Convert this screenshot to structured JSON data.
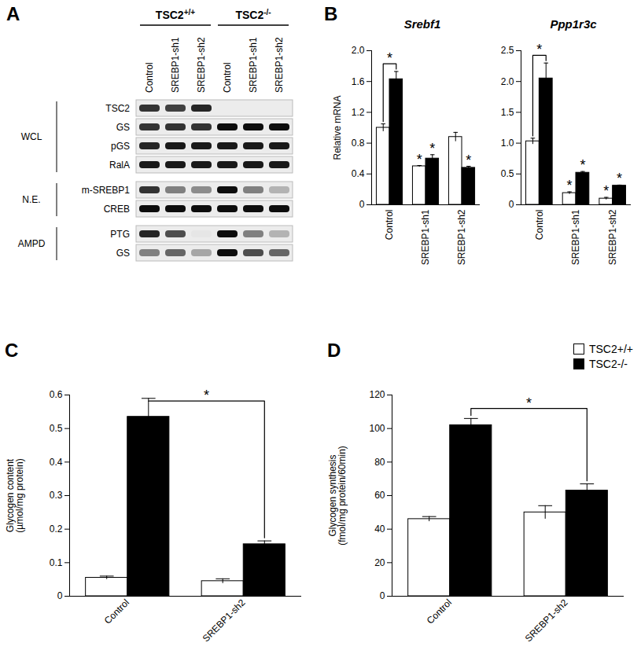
{
  "blot": {
    "panel": "A",
    "groups": [
      {
        "label": "TSC2+/+",
        "lanes": [
          "Control",
          "SREBP1-sh1",
          "SREBP1-sh2"
        ]
      },
      {
        "label": "TSC2-/-",
        "lanes": [
          "Control",
          "SREBP1-sh1",
          "SREBP1-sh2"
        ]
      }
    ],
    "sections": [
      {
        "label": "WCL",
        "rows": [
          {
            "label": "TSC2",
            "bands": [
              0.8,
              0.75,
              0.85,
              0,
              0,
              0
            ]
          },
          {
            "label": "GS",
            "bands": [
              0.8,
              0.8,
              0.8,
              0.95,
              0.95,
              0.95
            ]
          },
          {
            "label": "pGS",
            "bands": [
              0.85,
              0.9,
              0.9,
              0.9,
              0.9,
              0.9
            ]
          },
          {
            "label": "RalA",
            "bands": [
              0.9,
              0.9,
              0.9,
              0.9,
              0.9,
              0.9
            ]
          }
        ]
      },
      {
        "label": "N.E.",
        "rows": [
          {
            "label": "m-SREBP1",
            "bands": [
              0.8,
              0.5,
              0.45,
              0.95,
              0.5,
              0.3
            ]
          },
          {
            "label": "CREB",
            "bands": [
              0.95,
              0.95,
              0.95,
              0.95,
              0.95,
              0.95
            ]
          }
        ]
      },
      {
        "label": "AMPD",
        "rows": [
          {
            "label": "PTG",
            "bands": [
              0.85,
              0.7,
              0.1,
              0.95,
              0.5,
              0.3
            ]
          },
          {
            "label": "GS",
            "bands": [
              0.5,
              0.6,
              0.35,
              0.95,
              0.7,
              0.6
            ]
          }
        ]
      }
    ]
  },
  "chart_data": [
    {
      "type": "bar",
      "panel": "B",
      "title": "Srebf1",
      "ylabel": "Relative mRNA",
      "categories": [
        "Control",
        "SREBP1-sh1",
        "SREBP1-sh2"
      ],
      "series": [
        {
          "name": "TSC2+/+",
          "color": "#ffffff",
          "values": [
            1.0,
            0.5,
            0.88
          ],
          "errors": [
            0.05,
            0.01,
            0.06
          ],
          "marks": [
            null,
            "*",
            null
          ]
        },
        {
          "name": "TSC2-/-",
          "color": "#000000",
          "values": [
            1.63,
            0.6,
            0.48
          ],
          "errors": [
            0.1,
            0.05,
            0.02
          ],
          "marks": [
            null,
            "*",
            "*"
          ]
        }
      ],
      "ylim": [
        0,
        2.0
      ],
      "yticks": [
        0,
        0.4,
        0.8,
        1.2,
        1.6,
        {
          "value": 2.0,
          "label": "2.0"
        }
      ],
      "brackets": [
        {
          "series": [
            0,
            1
          ],
          "categories": [
            0,
            0
          ],
          "label": "*"
        }
      ]
    },
    {
      "type": "bar",
      "panel": "",
      "title": "Ppp1r3c",
      "categories": [
        "Control",
        "SREBP1-sh1",
        "SREBP1-sh2"
      ],
      "series": [
        {
          "name": "TSC2+/+",
          "color": "#ffffff",
          "values": [
            1.03,
            0.19,
            0.1
          ],
          "errors": [
            0.05,
            0.02,
            0.02
          ],
          "marks": [
            null,
            "*",
            "*"
          ]
        },
        {
          "name": "TSC2-/-",
          "color": "#000000",
          "values": [
            2.05,
            0.52,
            0.31
          ],
          "errors": [
            0.25,
            0.02,
            0.01
          ],
          "marks": [
            null,
            "*",
            "*"
          ]
        }
      ],
      "ylim": [
        0,
        2.5
      ],
      "yticks": [
        0,
        0.5,
        {
          "value": 1.0,
          "label": "1.0"
        },
        1.5,
        {
          "value": 2.0,
          "label": "2.0"
        },
        2.5
      ],
      "brackets": [
        {
          "series": [
            0,
            1
          ],
          "categories": [
            0,
            0
          ],
          "label": "*"
        }
      ]
    },
    {
      "type": "bar",
      "panel": "C",
      "ylabel": "Glycogen content\n(µmol/mg protein)",
      "categories": [
        "Control",
        "SREBP1-sh2"
      ],
      "series": [
        {
          "name": "TSC2+/+",
          "color": "#ffffff",
          "values": [
            0.055,
            0.045
          ],
          "errors": [
            0.005,
            0.007
          ]
        },
        {
          "name": "TSC2-/-",
          "color": "#000000",
          "values": [
            0.535,
            0.155
          ],
          "errors": [
            0.055,
            0.01
          ]
        }
      ],
      "ylim": [
        0,
        0.6
      ],
      "yticks": [
        0,
        0.1,
        0.2,
        0.3,
        0.4,
        0.5,
        0.6
      ],
      "brackets": [
        {
          "series": [
            1,
            1
          ],
          "categories": [
            0,
            1
          ],
          "label": "*"
        }
      ]
    },
    {
      "type": "bar",
      "panel": "D",
      "ylabel": "Glycogen synthesis\n(fmol/mg protein/60min)",
      "categories": [
        "Control",
        "SREBP1-sh2"
      ],
      "series": [
        {
          "name": "TSC2+/+",
          "color": "#ffffff",
          "values": [
            46,
            50
          ],
          "errors": [
            1.5,
            4
          ]
        },
        {
          "name": "TSC2-/-",
          "color": "#000000",
          "values": [
            102,
            63
          ],
          "errors": [
            4,
            4
          ]
        }
      ],
      "ylim": [
        0,
        120
      ],
      "yticks": [
        0,
        20,
        40,
        60,
        80,
        100,
        120
      ],
      "legend": "top-right",
      "brackets": [
        {
          "series": [
            1,
            1
          ],
          "categories": [
            0,
            1
          ],
          "label": "*"
        }
      ]
    }
  ]
}
